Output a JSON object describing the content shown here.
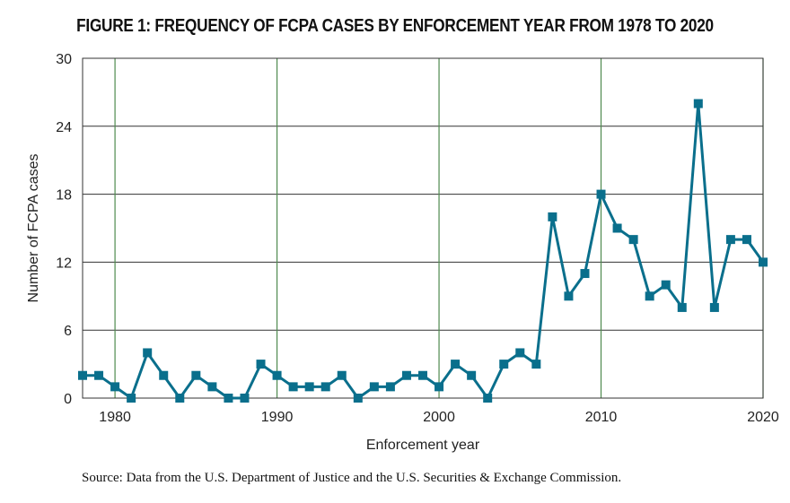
{
  "title": "FIGURE 1: FREQUENCY OF FCPA CASES BY ENFORCEMENT YEAR FROM 1978 TO 2020",
  "source": "Source: Data from the U.S. Department of Justice and the U.S. Securities & Exchange Commission.",
  "chart_data": {
    "type": "line",
    "title": "FIGURE 1: FREQUENCY OF FCPA CASES BY ENFORCEMENT YEAR FROM 1978 TO 2020",
    "xlabel": "Enforcement year",
    "ylabel": "Number of FCPA cases",
    "xlim": [
      1978,
      2020
    ],
    "ylim": [
      0,
      30
    ],
    "x_ticks": [
      1980,
      1990,
      2000,
      2010,
      2020
    ],
    "y_ticks": [
      0,
      6,
      12,
      18,
      24,
      30
    ],
    "grid": true,
    "colors": {
      "line": "#0a6f8c",
      "vertical_grid": "#4f8a4f",
      "horizontal_grid": "#333333"
    },
    "marker": "square",
    "x": [
      1978,
      1979,
      1980,
      1981,
      1982,
      1983,
      1984,
      1985,
      1986,
      1987,
      1988,
      1989,
      1990,
      1991,
      1992,
      1993,
      1994,
      1995,
      1996,
      1997,
      1998,
      1999,
      2000,
      2001,
      2002,
      2003,
      2004,
      2005,
      2006,
      2007,
      2008,
      2009,
      2010,
      2011,
      2012,
      2013,
      2014,
      2015,
      2016,
      2017,
      2018,
      2019,
      2020
    ],
    "values": [
      2,
      2,
      1,
      0,
      4,
      2,
      0,
      2,
      1,
      0,
      0,
      3,
      2,
      1,
      1,
      1,
      2,
      0,
      1,
      1,
      2,
      2,
      1,
      3,
      2,
      0,
      3,
      4,
      3,
      16,
      9,
      11,
      18,
      15,
      14,
      9,
      10,
      8,
      26,
      8,
      14,
      14,
      12
    ]
  }
}
